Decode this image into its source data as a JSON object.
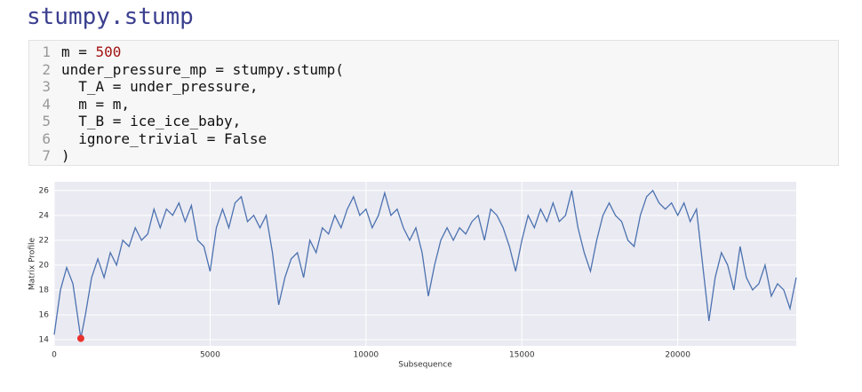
{
  "title": "stumpy.stump",
  "code": {
    "line_numbers": [
      "1",
      "2",
      "3",
      "4",
      "5",
      "6",
      "7"
    ],
    "lines": [
      [
        "m = ",
        "500"
      ],
      [
        "under_pressure_mp = stumpy.stump("
      ],
      [
        "  T_A = under_pressure,"
      ],
      [
        "  m = m,"
      ],
      [
        "  T_B = ice_ice_baby,"
      ],
      [
        "  ignore_trivial = False"
      ],
      [
        ")"
      ]
    ]
  },
  "chart_data": {
    "type": "line",
    "x_label": "Subsequence",
    "y_label": "Matrix Profile",
    "x": [
      0,
      200,
      400,
      600,
      853,
      1000,
      1200,
      1400,
      1600,
      1800,
      2000,
      2200,
      2400,
      2600,
      2800,
      3000,
      3200,
      3400,
      3600,
      3800,
      4000,
      4200,
      4400,
      4600,
      4800,
      5000,
      5200,
      5400,
      5600,
      5800,
      6000,
      6200,
      6400,
      6600,
      6800,
      7000,
      7200,
      7400,
      7600,
      7800,
      8000,
      8200,
      8400,
      8600,
      8800,
      9000,
      9200,
      9400,
      9600,
      9800,
      10000,
      10200,
      10400,
      10600,
      10800,
      11000,
      11200,
      11400,
      11600,
      11800,
      12000,
      12200,
      12400,
      12600,
      12800,
      13000,
      13200,
      13400,
      13600,
      13800,
      14000,
      14200,
      14400,
      14600,
      14800,
      15000,
      15200,
      15400,
      15600,
      15800,
      16000,
      16200,
      16400,
      16600,
      16800,
      17000,
      17200,
      17400,
      17600,
      17800,
      18000,
      18200,
      18400,
      18600,
      18800,
      19000,
      19200,
      19400,
      19600,
      19800,
      20000,
      20200,
      20400,
      20600,
      20800,
      21000,
      21200,
      21400,
      21600,
      21800,
      22000,
      22200,
      22400,
      22600,
      22800,
      23000,
      23200,
      23400,
      23600,
      23800
    ],
    "series": [
      {
        "name": "Matrix Profile",
        "color": "#4c72b0",
        "values": [
          14.4,
          18,
          19.8,
          18.5,
          14.1,
          16,
          19,
          20.5,
          19,
          21,
          20,
          22,
          21.5,
          23,
          22,
          22.5,
          24.5,
          23,
          24.5,
          24,
          25,
          23.5,
          24.8,
          22,
          21.5,
          19.5,
          23,
          24.5,
          23,
          25,
          25.5,
          23.5,
          24,
          23,
          24,
          21,
          16.8,
          19,
          20.5,
          21,
          19,
          22,
          21,
          23,
          22.5,
          24,
          23,
          24.5,
          25.5,
          24,
          24.5,
          23,
          24,
          25.8,
          24,
          24.5,
          23,
          22,
          23,
          21,
          17.5,
          20,
          22,
          23,
          22,
          23,
          22.5,
          23.5,
          24,
          22,
          24.5,
          24,
          23,
          21.5,
          19.5,
          22,
          24,
          23,
          24.5,
          23.5,
          25,
          23.5,
          24,
          26,
          23,
          21,
          19.5,
          22,
          24,
          25,
          24,
          23.5,
          22,
          21.5,
          24,
          25.5,
          26,
          25,
          24.5,
          25,
          24,
          25,
          23.5,
          24.5,
          20,
          15.5,
          19,
          21,
          20,
          18,
          21.5,
          19,
          18,
          18.5,
          20,
          17.5,
          18.5,
          18,
          16.5,
          19
        ]
      }
    ],
    "highlight": {
      "x": 853,
      "y": 14.1,
      "color": "#e8322b"
    },
    "xlim": [
      0,
      23800
    ],
    "ylim": [
      13.5,
      26.7
    ],
    "xticks": [
      0,
      5000,
      10000,
      15000,
      20000
    ],
    "yticks": [
      14,
      16,
      18,
      20,
      22,
      24,
      26
    ],
    "grid": true,
    "background": "#eaeaf2"
  }
}
